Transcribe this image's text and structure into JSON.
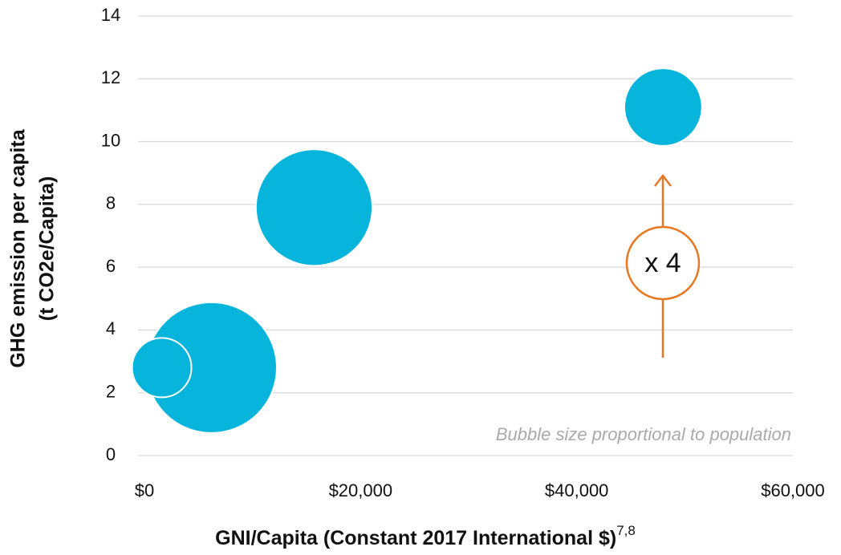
{
  "chart_data": {
    "type": "bubble",
    "x_label": "GNI/Capita (Constant 2017 International $)",
    "x_label_superscript": "7,8",
    "y_label": [
      "GHG emission per capita",
      "(t CO2e/Capita)"
    ],
    "annotations": [
      "Bubble size proportional to population",
      "x 4"
    ],
    "series": [
      {
        "color": "#06b4dc",
        "x": [
          6200,
          15700,
          48000,
          1600
        ],
        "values": [
          2.8,
          7.9,
          11.1,
          2.8
        ],
        "sizes": [
          3.4,
          2.7,
          1.2,
          0.7
        ]
      }
    ],
    "xlim": [
      0,
      60000
    ],
    "xticks": [
      {
        "value": 0,
        "label": "$0"
      },
      {
        "value": 20000,
        "label": "$20,000"
      },
      {
        "value": 40000,
        "label": "$40,000"
      },
      {
        "value": 60000,
        "label": "$60,000"
      }
    ],
    "ylim": [
      0,
      14
    ],
    "yticks": [
      0,
      2,
      4,
      6,
      8,
      10,
      12,
      14
    ],
    "grid": true,
    "annotation_color": "#e87722"
  }
}
